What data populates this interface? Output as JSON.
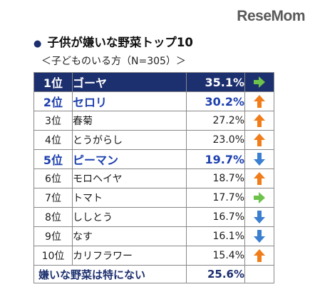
{
  "logo": "ReseMom",
  "title_bullet": "●",
  "title": "子供が嫌いな野菜トップ10",
  "subtitle": "＜子どものいる方（N=305）＞",
  "colors": {
    "navy": "#1c2f6e",
    "blue_text": "#1c3fae",
    "arrow_up": "#f07d1a",
    "arrow_down": "#3b7fd0",
    "arrow_right": "#6cc24a"
  },
  "chart_data": {
    "type": "table",
    "title": "子供が嫌いな野菜トップ10",
    "subtitle": "＜子どものいる方（N=305）＞",
    "rows": [
      {
        "rank": "1位",
        "vegetable": "ゴーヤ",
        "percent": "35.1%",
        "value": 35.1,
        "trend": "same",
        "style": "dark"
      },
      {
        "rank": "2位",
        "vegetable": "セロリ",
        "percent": "30.2%",
        "value": 30.2,
        "trend": "up",
        "style": "blue"
      },
      {
        "rank": "3位",
        "vegetable": "春菊",
        "percent": "27.2%",
        "value": 27.2,
        "trend": "up",
        "style": "normal"
      },
      {
        "rank": "4位",
        "vegetable": "とうがらし",
        "percent": "23.0%",
        "value": 23.0,
        "trend": "up",
        "style": "normal"
      },
      {
        "rank": "5位",
        "vegetable": "ピーマン",
        "percent": "19.7%",
        "value": 19.7,
        "trend": "down",
        "style": "blue"
      },
      {
        "rank": "6位",
        "vegetable": "モロヘイヤ",
        "percent": "18.7%",
        "value": 18.7,
        "trend": "up",
        "style": "normal"
      },
      {
        "rank": "7位",
        "vegetable": "トマト",
        "percent": "17.7%",
        "value": 17.7,
        "trend": "same",
        "style": "normal"
      },
      {
        "rank": "8位",
        "vegetable": "ししとう",
        "percent": "16.7%",
        "value": 16.7,
        "trend": "down",
        "style": "normal"
      },
      {
        "rank": "9位",
        "vegetable": "なす",
        "percent": "16.1%",
        "value": 16.1,
        "trend": "down",
        "style": "normal"
      },
      {
        "rank": "10位",
        "vegetable": "カリフラワー",
        "percent": "15.4%",
        "value": 15.4,
        "trend": "up",
        "style": "normal"
      }
    ],
    "total_row": {
      "label": "嫌いな野菜は特にない",
      "percent": "25.6%",
      "value": 25.6
    }
  }
}
